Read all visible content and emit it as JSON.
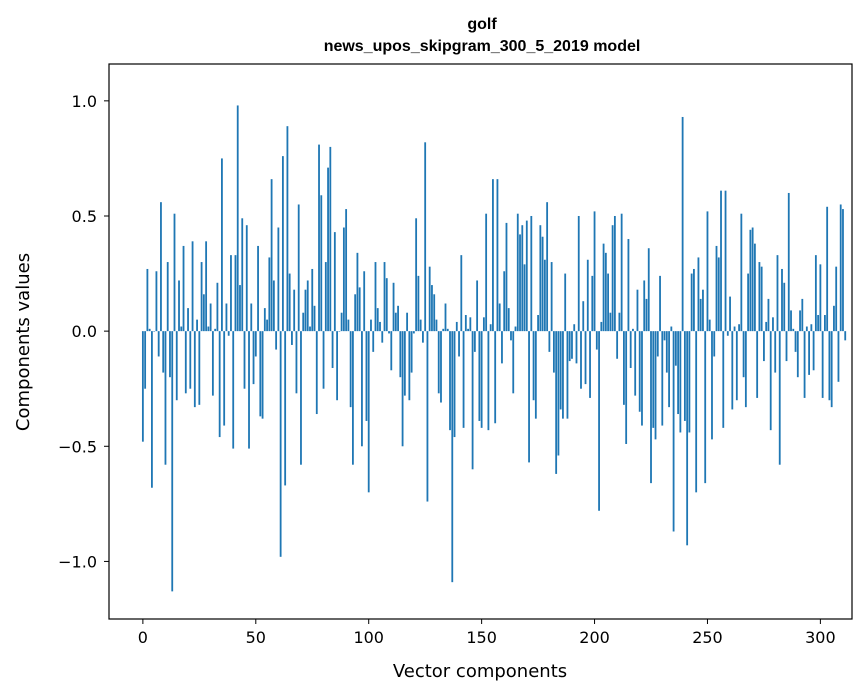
{
  "chart_data": {
    "type": "bar",
    "title": "golf",
    "subtitle": "news_upos_skipgram_300_5_2019 model",
    "xlabel": "Vector components",
    "ylabel": "Components values",
    "xlim": [
      -15,
      314
    ],
    "ylim": [
      -1.25,
      1.16
    ],
    "xticks": [
      0,
      50,
      100,
      150,
      200,
      250,
      300
    ],
    "yticks": [
      -1.0,
      -0.5,
      0.0,
      0.5,
      1.0
    ],
    "ytick_labels": [
      "−1.0",
      "−0.5",
      "0.0",
      "0.5",
      "1.0"
    ],
    "grid": false,
    "legend": "none",
    "bar_color": "#1f77b4",
    "x_start": 0,
    "values": [
      -0.48,
      -0.25,
      0.27,
      0.01,
      -0.68,
      0.0,
      0.26,
      -0.11,
      0.56,
      -0.18,
      -0.58,
      0.3,
      -0.2,
      -1.13,
      0.51,
      -0.3,
      0.22,
      0.02,
      0.37,
      -0.27,
      0.1,
      -0.25,
      0.39,
      -0.33,
      0.05,
      -0.32,
      0.3,
      0.16,
      0.39,
      0.02,
      0.12,
      -0.28,
      0.01,
      0.21,
      -0.46,
      0.75,
      -0.41,
      0.12,
      -0.02,
      0.33,
      -0.51,
      0.33,
      0.98,
      0.2,
      0.49,
      -0.25,
      0.46,
      -0.51,
      0.12,
      -0.23,
      -0.11,
      0.37,
      -0.37,
      -0.38,
      0.1,
      0.05,
      0.32,
      0.66,
      0.22,
      -0.08,
      0.45,
      -0.98,
      0.76,
      -0.67,
      0.89,
      0.25,
      -0.06,
      0.18,
      -0.27,
      0.55,
      -0.58,
      0.08,
      0.18,
      0.22,
      0.02,
      0.27,
      0.11,
      -0.36,
      0.81,
      0.59,
      -0.25,
      0.3,
      0.71,
      0.8,
      -0.16,
      0.43,
      -0.3,
      0.0,
      0.08,
      0.45,
      0.53,
      0.05,
      -0.33,
      -0.58,
      0.16,
      0.34,
      0.19,
      -0.5,
      0.26,
      -0.39,
      -0.7,
      0.05,
      -0.09,
      0.3,
      0.1,
      0.04,
      -0.05,
      0.3,
      0.23,
      -0.01,
      -0.17,
      0.21,
      0.08,
      0.11,
      -0.2,
      -0.5,
      -0.28,
      0.08,
      -0.3,
      -0.18,
      -0.01,
      0.49,
      0.24,
      0.05,
      -0.05,
      0.82,
      -0.74,
      0.28,
      0.2,
      0.16,
      0.05,
      -0.27,
      -0.31,
      0.01,
      0.12,
      0.01,
      -0.43,
      -1.09,
      -0.46,
      0.04,
      -0.11,
      0.33,
      -0.42,
      0.07,
      0.01,
      0.06,
      -0.6,
      -0.09,
      0.22,
      -0.39,
      -0.42,
      0.06,
      0.51,
      -0.43,
      0.03,
      0.66,
      -0.4,
      0.66,
      0.12,
      -0.14,
      0.26,
      0.47,
      0.1,
      -0.04,
      -0.27,
      0.02,
      0.51,
      0.42,
      0.46,
      0.29,
      0.48,
      -0.57,
      0.5,
      -0.3,
      -0.38,
      0.07,
      0.46,
      0.41,
      0.31,
      0.56,
      -0.09,
      0.3,
      -0.18,
      -0.62,
      -0.54,
      -0.34,
      -0.38,
      0.25,
      -0.38,
      -0.13,
      -0.12,
      0.03,
      -0.14,
      0.5,
      -0.25,
      0.13,
      -0.23,
      0.31,
      -0.29,
      0.24,
      0.52,
      -0.08,
      -0.78,
      0.04,
      0.38,
      0.34,
      0.25,
      0.08,
      0.46,
      0.5,
      -0.12,
      0.08,
      0.51,
      -0.32,
      -0.49,
      0.4,
      -0.16,
      0.01,
      -0.28,
      0.18,
      -0.35,
      -0.41,
      0.22,
      0.14,
      0.36,
      -0.66,
      -0.42,
      -0.47,
      -0.11,
      0.24,
      -0.41,
      -0.04,
      -0.18,
      -0.33,
      0.02,
      -0.87,
      -0.15,
      -0.36,
      -0.44,
      0.93,
      -0.39,
      -0.93,
      -0.44,
      0.25,
      0.27,
      -0.7,
      0.32,
      0.14,
      0.18,
      -0.66,
      0.52,
      0.05,
      -0.47,
      -0.11,
      0.37,
      0.32,
      0.61,
      -0.42,
      0.61,
      -0.02,
      0.15,
      -0.34,
      0.02,
      -0.3,
      0.03,
      0.51,
      -0.2,
      -0.33,
      0.25,
      0.44,
      0.45,
      0.38,
      -0.29,
      0.3,
      0.28,
      -0.13,
      0.04,
      0.14,
      -0.43,
      0.06,
      -0.18,
      0.33,
      -0.58,
      0.27,
      0.21,
      -0.13,
      0.6,
      0.09,
      0.01,
      -0.09,
      -0.2,
      0.09,
      0.14,
      -0.29,
      0.02,
      -0.19,
      0.03,
      -0.17,
      0.33,
      0.07,
      0.29,
      -0.29,
      0.07,
      0.54,
      -0.3,
      -0.33,
      0.11,
      0.28,
      -0.22,
      0.55,
      0.53,
      -0.04
    ]
  }
}
